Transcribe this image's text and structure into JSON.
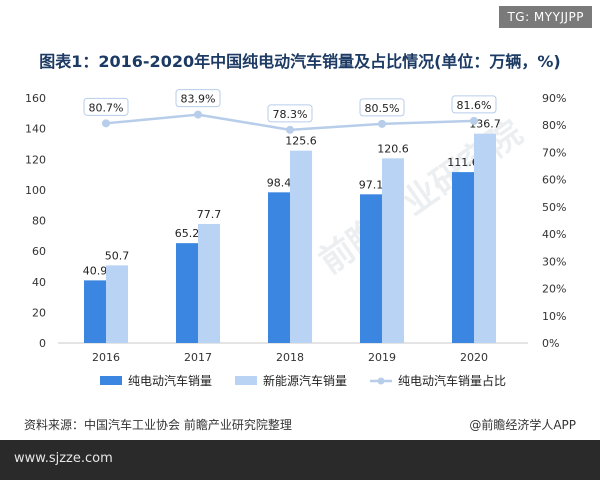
{
  "badge": "TG: MYYJJPP",
  "footer": {
    "url": "www.sjzze.com"
  },
  "source_text": "资料来源：中国汽车工业协会 前瞻产业研究院整理",
  "brand_text": "@前瞻经济学人APP",
  "watermark": "前瞻产业研究院",
  "colors": {
    "bar_pure_ev": "#3b86e0",
    "bar_nev": "#b8d3f4",
    "line_share": "#b7cdea",
    "axis_text": "#333333"
  },
  "chart_data": {
    "type": "bar",
    "title": "图表1：2016-2020年中国纯电动汽车销量及占比情况(单位：万辆，%)",
    "categories": [
      "2016",
      "2017",
      "2018",
      "2019",
      "2020"
    ],
    "series": [
      {
        "name": "纯电动汽车销量",
        "type": "bar",
        "values": [
          40.9,
          65.2,
          98.4,
          97.1,
          111.6
        ]
      },
      {
        "name": "新能源汽车销量",
        "type": "bar",
        "values": [
          50.7,
          77.7,
          125.6,
          120.6,
          136.7
        ]
      },
      {
        "name": "纯电动汽车销量占比",
        "type": "line",
        "axis": "right",
        "values": [
          80.7,
          83.9,
          78.3,
          80.5,
          81.6
        ],
        "labels": [
          "80.7%",
          "83.9%",
          "78.3%",
          "80.5%",
          "81.6%"
        ]
      }
    ],
    "ylim_left": [
      0,
      160
    ],
    "yticks_left": [
      "0",
      "20",
      "40",
      "60",
      "80",
      "100",
      "120",
      "140",
      "160"
    ],
    "ylim_right": [
      0,
      90
    ],
    "yticks_right": [
      "0%",
      "10%",
      "20%",
      "30%",
      "40%",
      "50%",
      "60%",
      "70%",
      "80%",
      "90%"
    ],
    "legend_position": "bottom",
    "grid": false
  }
}
